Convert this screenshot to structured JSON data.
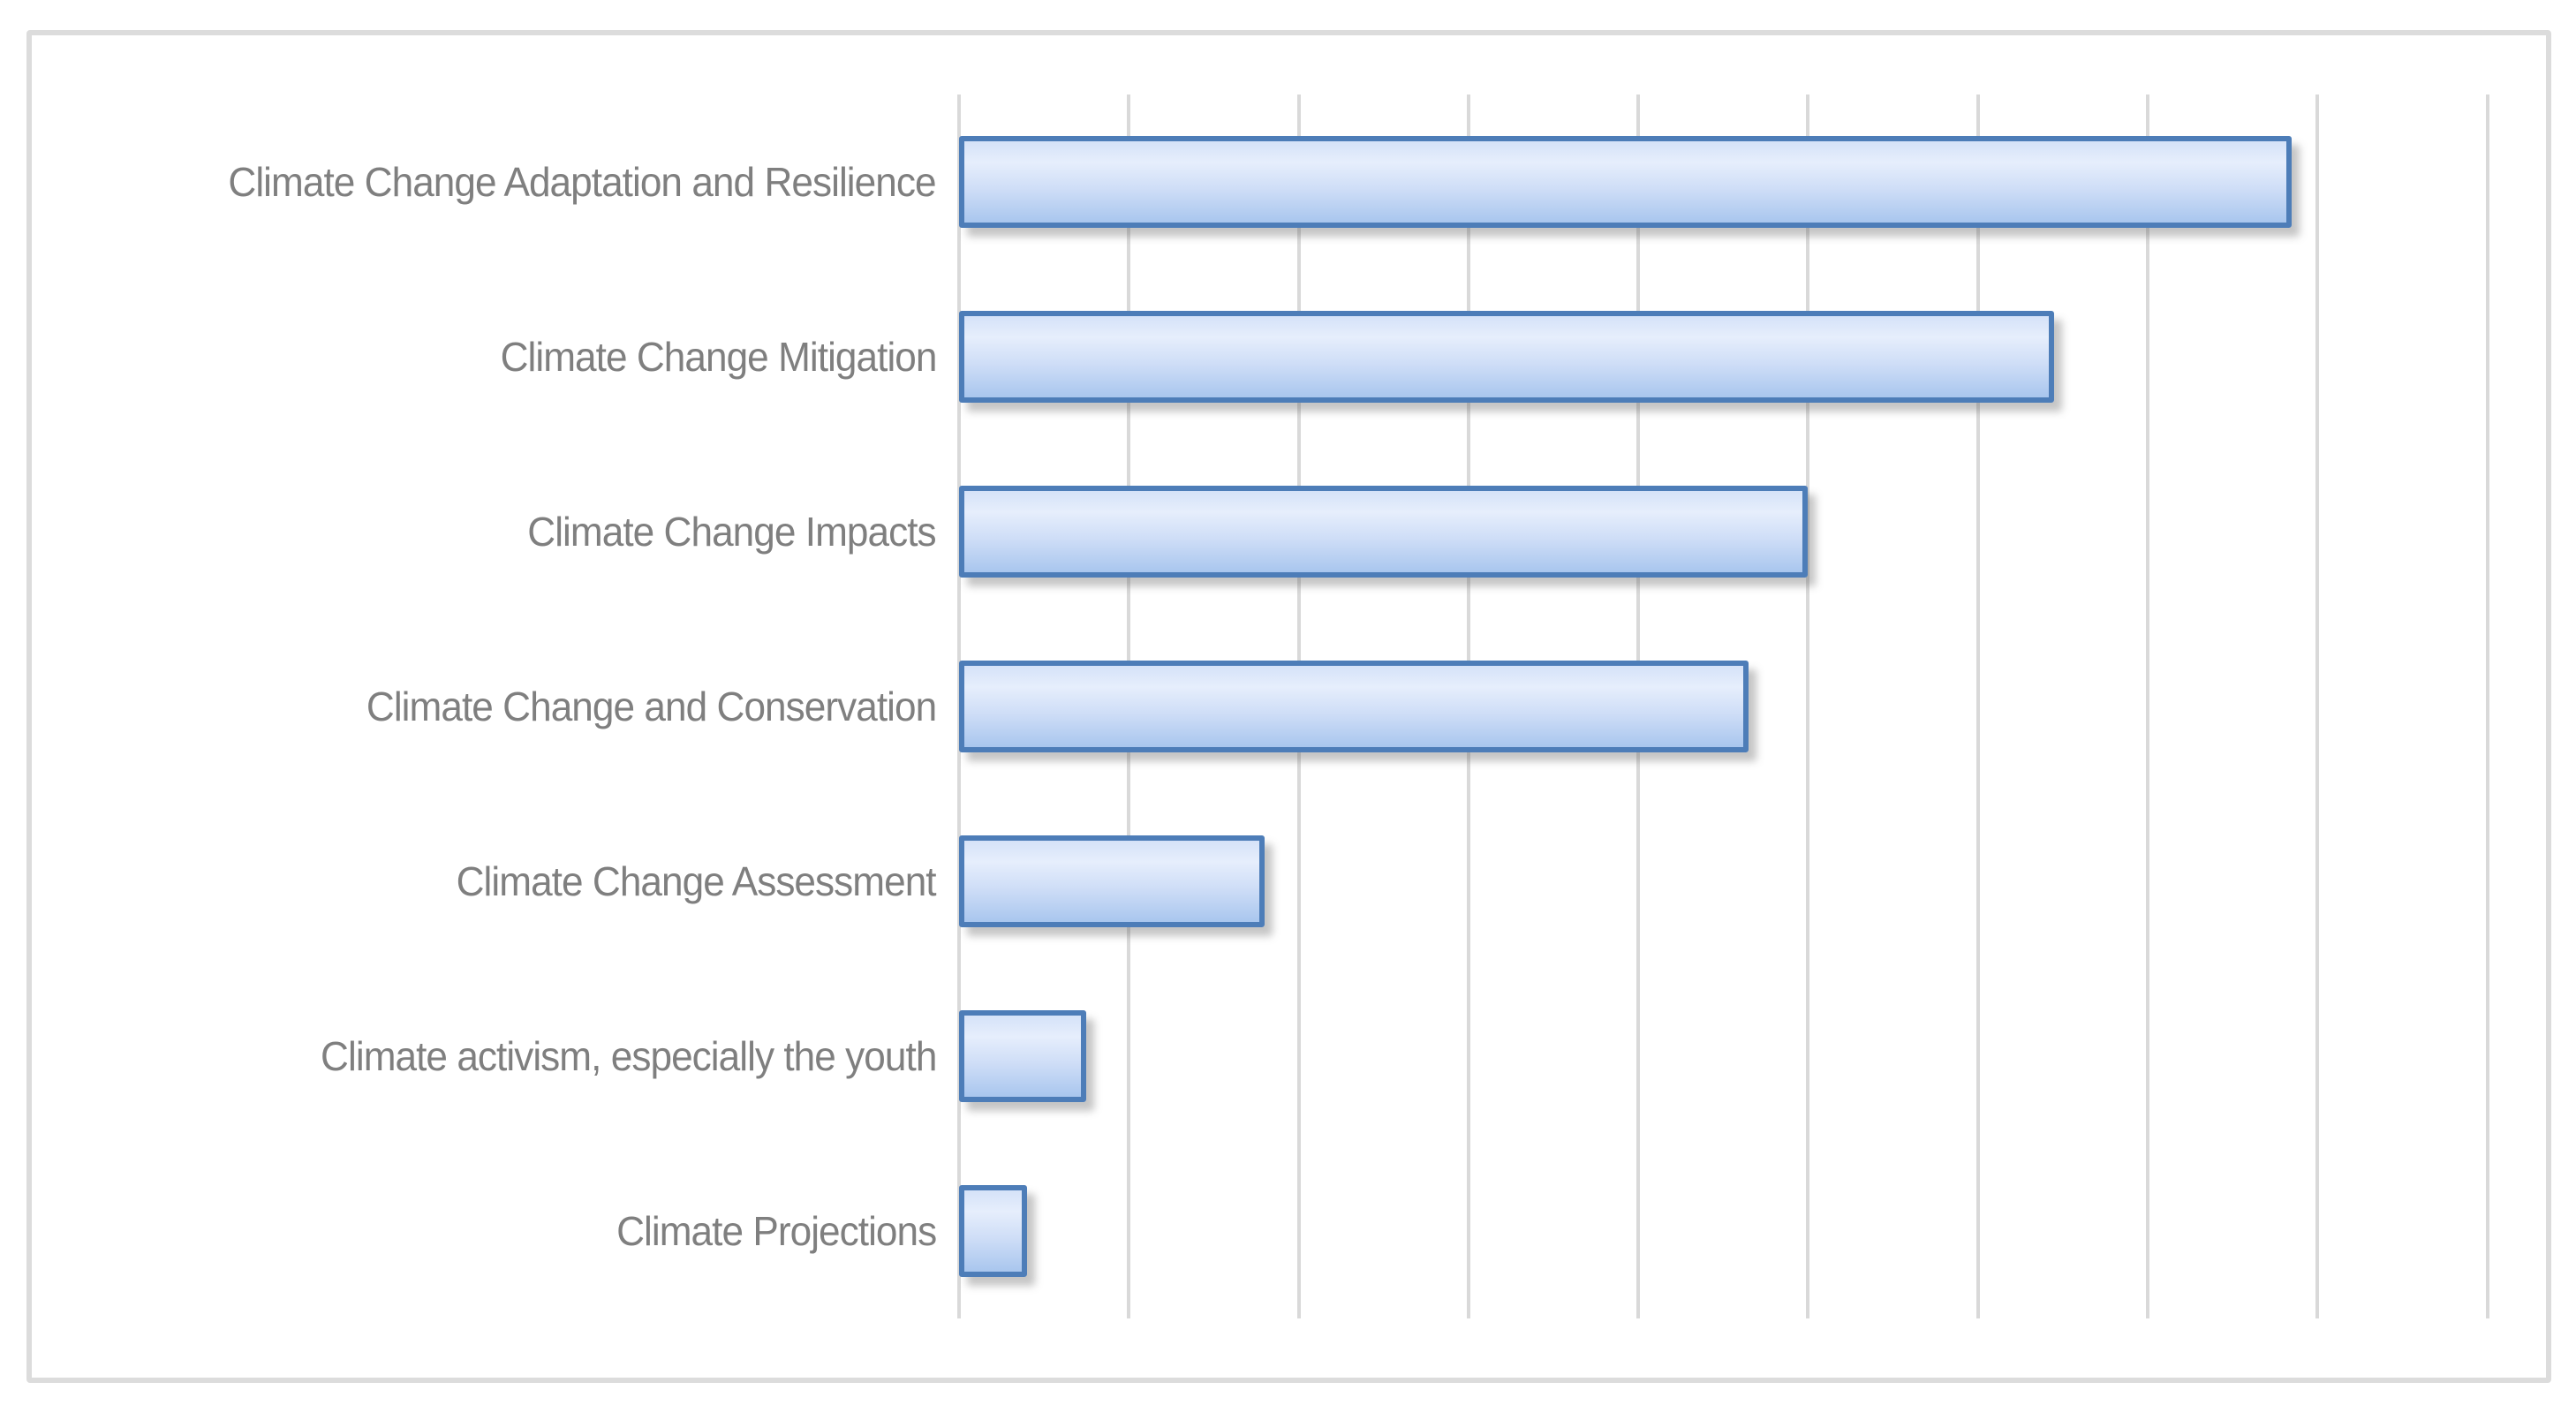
{
  "chart_data": {
    "type": "bar",
    "orientation": "horizontal",
    "title": "",
    "xlabel": "",
    "ylabel": "",
    "categories": [
      "Climate Change Adaptation and Resilience",
      "Climate Change Mitigation",
      "Climate Change Impacts",
      "Climate Change and Conservation",
      "Climate Change Assessment",
      "Climate activism, especially the youth",
      "Climate Projections"
    ],
    "values": [
      7.85,
      6.45,
      5.0,
      4.65,
      1.8,
      0.75,
      0.4
    ],
    "xlim": [
      0,
      9.33
    ],
    "xticks": [
      0,
      1,
      2,
      3,
      4,
      5,
      6,
      7,
      8,
      9
    ],
    "tick_labels_visible": false,
    "value_labels_visible": false,
    "grid": "vertical",
    "legend": "none",
    "colors": {
      "bar_fill_top": "#d5e2f8",
      "bar_fill_light": "#e6eefc",
      "bar_fill_mid": "#cfdef7",
      "bar_fill_bottom": "#a9c6ee",
      "bar_border": "#4d7db8",
      "gridline": "#d9d9d9",
      "category_label": "#7f7f7f",
      "frame_border": "#dcdcdc",
      "background": "#ffffff"
    }
  }
}
